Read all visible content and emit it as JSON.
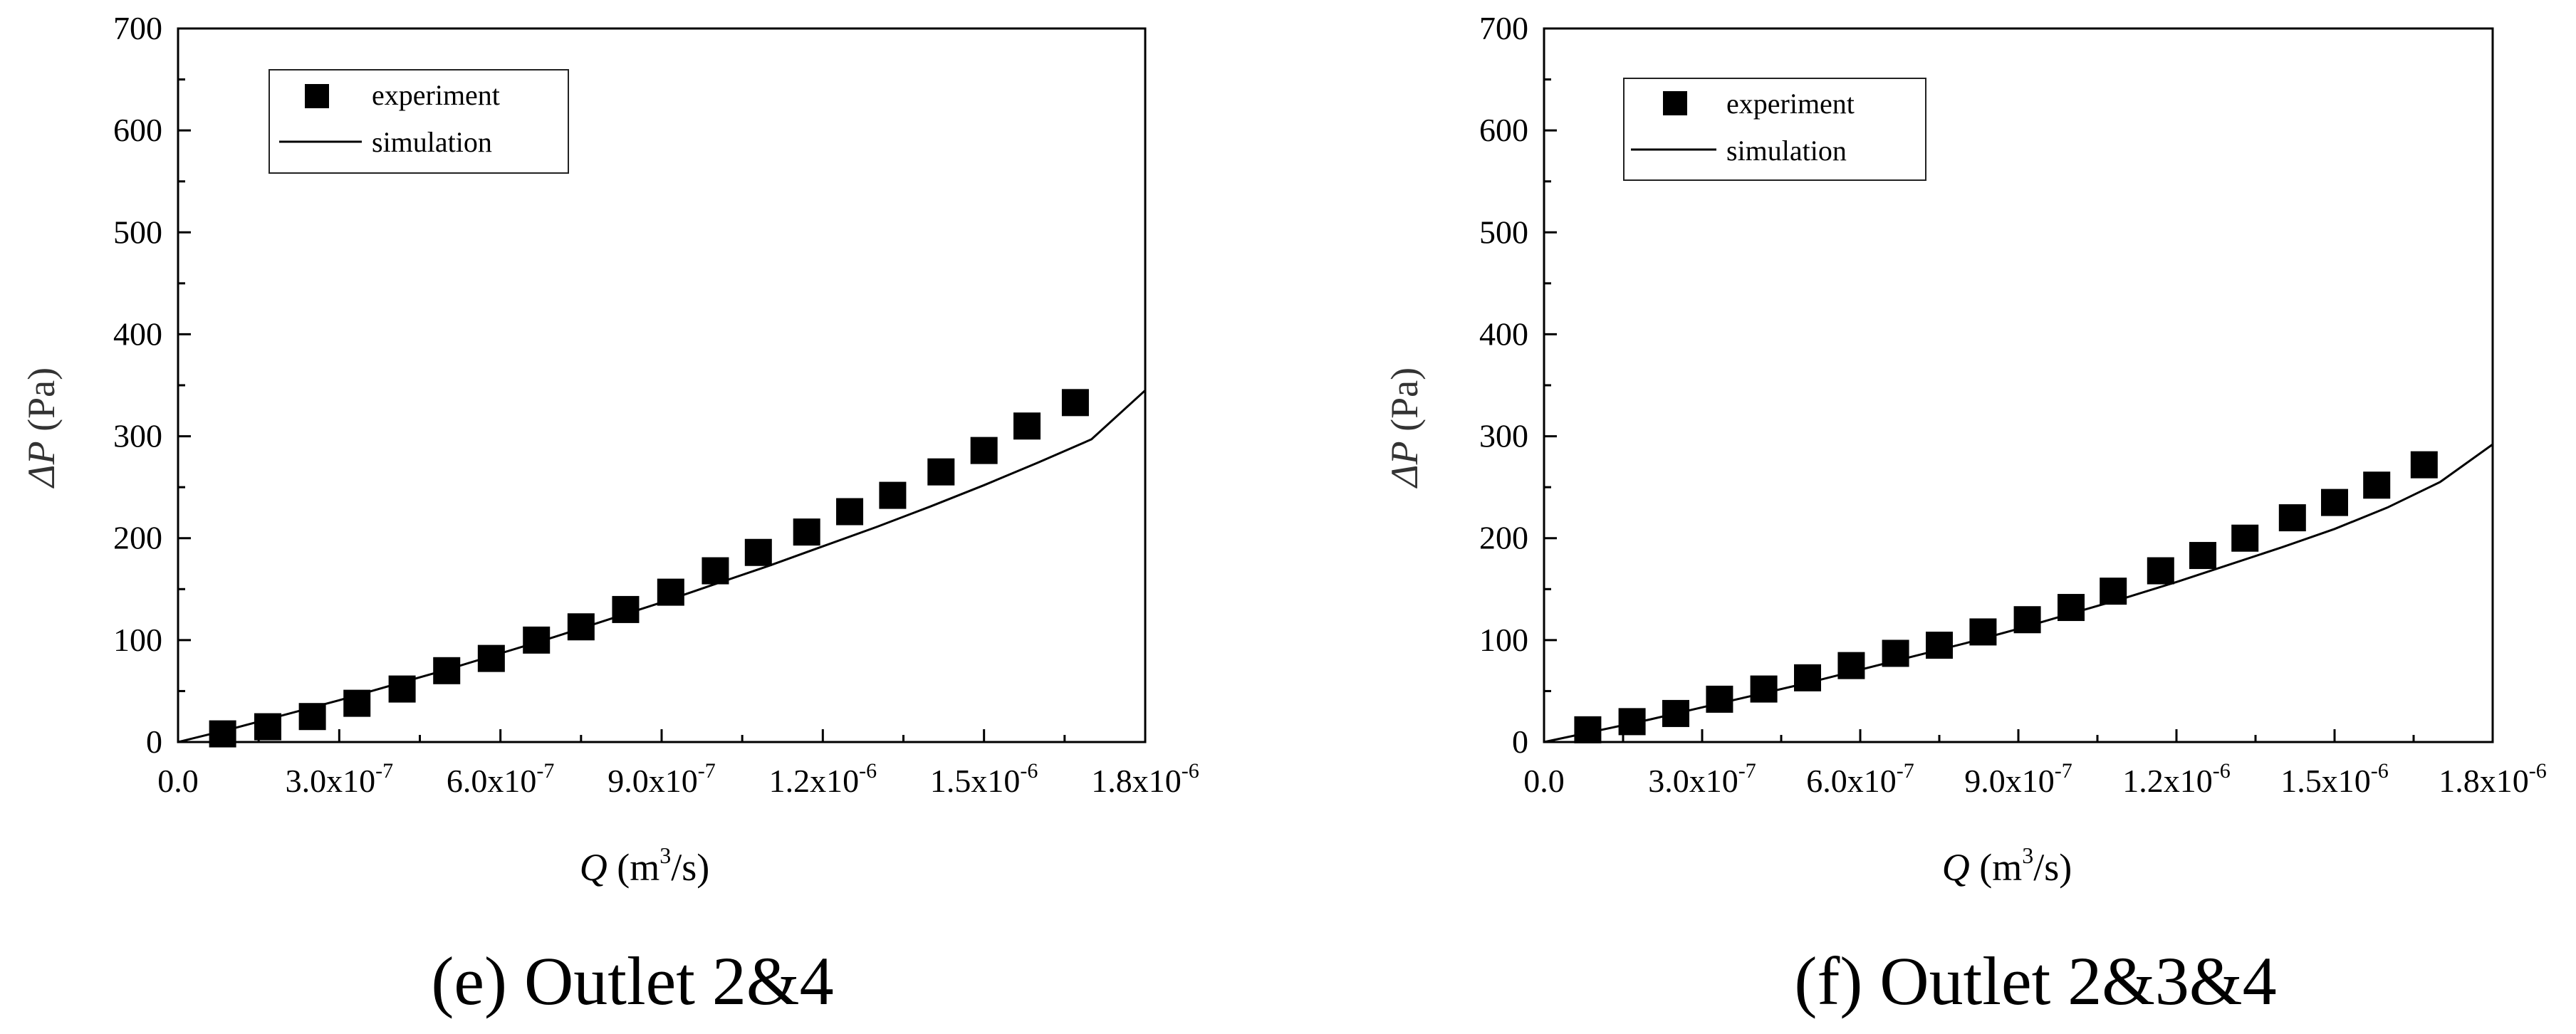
{
  "panels": [
    {
      "caption": "(e) Outlet 2&4",
      "legend": {
        "experiment": "experiment",
        "simulation": "simulation"
      },
      "xlabel": {
        "sym": "Q",
        "unit_pre": "(m",
        "unit_sup": "3",
        "unit_post": "/s)"
      },
      "ylabel": {
        "sym": "ΔP",
        "unit": "(Pa)"
      },
      "xticks": [
        {
          "v": 0.0,
          "base": "0.0",
          "exp": ""
        },
        {
          "v": 3e-07,
          "base": "3.0x10",
          "exp": "-7"
        },
        {
          "v": 6e-07,
          "base": "6.0x10",
          "exp": "-7"
        },
        {
          "v": 9e-07,
          "base": "9.0x10",
          "exp": "-7"
        },
        {
          "v": 1.2e-06,
          "base": "1.2x10",
          "exp": "-6"
        },
        {
          "v": 1.5e-06,
          "base": "1.5x10",
          "exp": "-6"
        },
        {
          "v": 1.8e-06,
          "base": "1.8x10",
          "exp": "-6"
        }
      ],
      "yticks": [
        "0",
        "100",
        "200",
        "300",
        "400",
        "500",
        "600",
        "700"
      ]
    },
    {
      "caption": "(f) Outlet 2&3&4",
      "legend": {
        "experiment": "experiment",
        "simulation": "simulation"
      },
      "xlabel": {
        "sym": "Q",
        "unit_pre": "(m",
        "unit_sup": "3",
        "unit_post": "/s)"
      },
      "ylabel": {
        "sym": "ΔP",
        "unit": "(Pa)"
      },
      "xticks": [
        {
          "v": 0.0,
          "base": "0.0",
          "exp": ""
        },
        {
          "v": 3e-07,
          "base": "3.0x10",
          "exp": "-7"
        },
        {
          "v": 6e-07,
          "base": "6.0x10",
          "exp": "-7"
        },
        {
          "v": 9e-07,
          "base": "9.0x10",
          "exp": "-7"
        },
        {
          "v": 1.2e-06,
          "base": "1.2x10",
          "exp": "-6"
        },
        {
          "v": 1.5e-06,
          "base": "1.5x10",
          "exp": "-6"
        },
        {
          "v": 1.8e-06,
          "base": "1.8x10",
          "exp": "-6"
        }
      ],
      "yticks": [
        "0",
        "100",
        "200",
        "300",
        "400",
        "500",
        "600",
        "700"
      ]
    }
  ],
  "chart_data": [
    {
      "type": "scatter",
      "title": "(e) Outlet 2&4",
      "xlabel": "Q (m3/s)",
      "ylabel": "ΔP (Pa)",
      "xlim": [
        0,
        1.8e-06
      ],
      "ylim": [
        0,
        700
      ],
      "legend_position": "top-left",
      "grid": false,
      "series": [
        {
          "name": "experiment",
          "kind": "marker",
          "x": [
            8.3e-08,
            1.67e-07,
            2.5e-07,
            3.33e-07,
            4.17e-07,
            5e-07,
            5.83e-07,
            6.67e-07,
            7.5e-07,
            8.33e-07,
            9.17e-07,
            1e-06,
            1.08e-06,
            1.17e-06,
            1.25e-06,
            1.33e-06,
            1.42e-06,
            1.5e-06,
            1.58e-06,
            1.67e-06
          ],
          "y": [
            8,
            15,
            25,
            38,
            52,
            70,
            82,
            100,
            113,
            130,
            147,
            168,
            186,
            206,
            226,
            242,
            265,
            286,
            310,
            333
          ]
        },
        {
          "name": "simulation",
          "kind": "line",
          "x": [
            0,
            1e-07,
            2e-07,
            3e-07,
            4e-07,
            5e-07,
            6e-07,
            7e-07,
            8e-07,
            9e-07,
            1e-06,
            1.1e-06,
            1.2e-06,
            1.3e-06,
            1.4e-06,
            1.5e-06,
            1.6e-06,
            1.7e-06,
            1.8e-06
          ],
          "y": [
            0,
            13,
            27,
            41,
            56,
            71,
            87,
            103,
            120,
            137,
            155,
            173,
            192,
            211,
            231,
            252,
            274,
            297,
            345
          ]
        }
      ]
    },
    {
      "type": "scatter",
      "title": "(f) Outlet 2&3&4",
      "xlabel": "Q (m3/s)",
      "ylabel": "ΔP (Pa)",
      "xlim": [
        0,
        1.8e-06
      ],
      "ylim": [
        0,
        700
      ],
      "legend_position": "top-left",
      "grid": false,
      "series": [
        {
          "name": "experiment",
          "kind": "marker",
          "x": [
            8.3e-08,
            1.67e-07,
            2.5e-07,
            3.33e-07,
            4.17e-07,
            5e-07,
            5.83e-07,
            6.67e-07,
            7.5e-07,
            8.33e-07,
            9.17e-07,
            1e-06,
            1.08e-06,
            1.17e-06,
            1.25e-06,
            1.33e-06,
            1.42e-06,
            1.5e-06,
            1.58e-06,
            1.67e-06
          ],
          "y": [
            12,
            20,
            28,
            42,
            52,
            63,
            75,
            87,
            95,
            108,
            120,
            132,
            148,
            168,
            183,
            200,
            220,
            235,
            252,
            272
          ]
        },
        {
          "name": "simulation",
          "kind": "line",
          "x": [
            0,
            1e-07,
            2e-07,
            3e-07,
            4e-07,
            5e-07,
            6e-07,
            7e-07,
            8e-07,
            9e-07,
            1e-06,
            1.1e-06,
            1.2e-06,
            1.3e-06,
            1.4e-06,
            1.5e-06,
            1.6e-06,
            1.7e-06,
            1.8e-06
          ],
          "y": [
            0,
            11,
            22,
            34,
            46,
            58,
            71,
            84,
            97,
            111,
            126,
            141,
            157,
            174,
            191,
            209,
            230,
            255,
            292
          ]
        }
      ]
    }
  ]
}
